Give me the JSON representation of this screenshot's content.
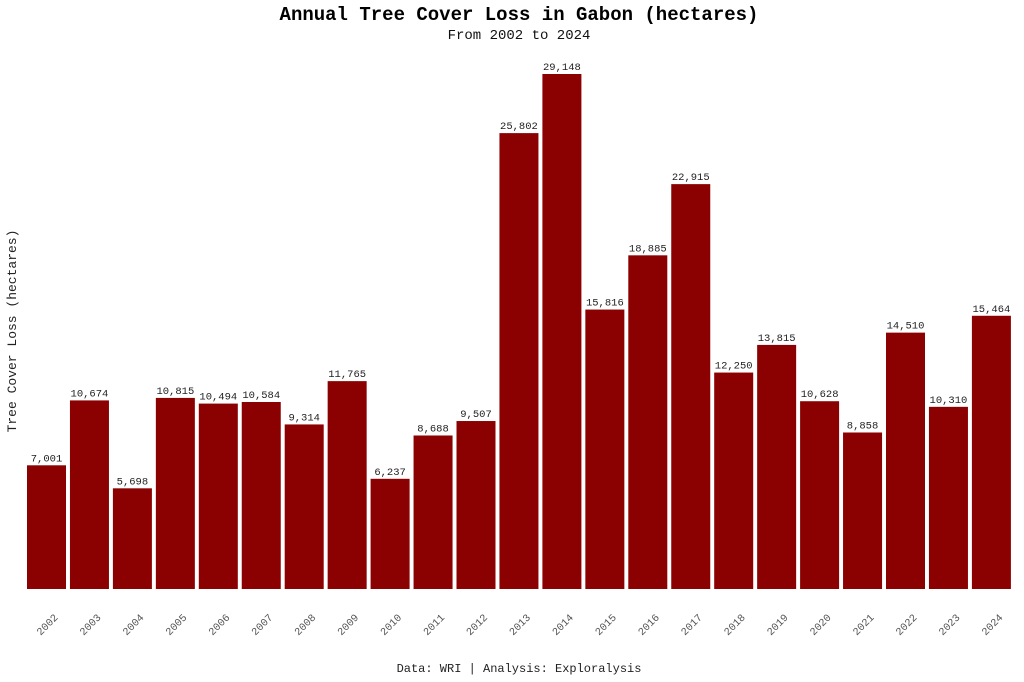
{
  "chart_data": {
    "type": "bar",
    "title": "Annual Tree Cover Loss in Gabon (hectares)",
    "subtitle": "From 2002 to 2024",
    "xlabel": "",
    "ylabel": "Tree Cover Loss (hectares)",
    "caption": "Data: WRI | Analysis: Exploralysis",
    "categories": [
      "2002",
      "2003",
      "2004",
      "2005",
      "2006",
      "2007",
      "2008",
      "2009",
      "2010",
      "2011",
      "2012",
      "2013",
      "2014",
      "2015",
      "2016",
      "2017",
      "2018",
      "2019",
      "2020",
      "2021",
      "2022",
      "2023",
      "2024"
    ],
    "values": [
      7001,
      10674,
      5698,
      10815,
      10494,
      10584,
      9314,
      11765,
      6237,
      8688,
      9507,
      25802,
      29148,
      15816,
      18885,
      22915,
      12250,
      13815,
      10628,
      8858,
      14510,
      10310,
      15464
    ],
    "data_labels": [
      "7,001",
      "10,674",
      "5,698",
      "10,815",
      "10,494",
      "10,584",
      "9,314",
      "11,765",
      "6,237",
      "8,688",
      "9,507",
      "25,802",
      "29,148",
      "15,816",
      "18,885",
      "22,915",
      "12,250",
      "13,815",
      "10,628",
      "8,858",
      "14,510",
      "10,310",
      "15,464"
    ],
    "ylim": [
      0,
      29148
    ],
    "grid": false,
    "legend": "none",
    "bar_color": "#8B0000"
  }
}
